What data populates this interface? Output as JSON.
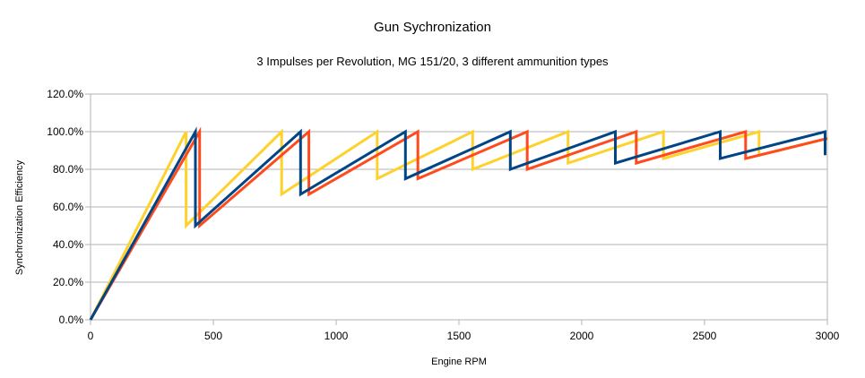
{
  "chart_data": {
    "type": "line",
    "title": "Gun Sychronization",
    "subtitle": "3 Impulses per Revolution, MG 151/20, 3 different ammunition types",
    "xlabel": "Engine RPM",
    "ylabel": "Synchronization Efficiency",
    "xlim": [
      0,
      3000
    ],
    "ylim": [
      0,
      120
    ],
    "x_ticks": [
      "0",
      "500",
      "1000",
      "1500",
      "2000",
      "2500",
      "3000"
    ],
    "y_ticks": [
      "0.0%",
      "20.0%",
      "40.0%",
      "60.0%",
      "80.0%",
      "100.0%",
      "120.0%"
    ],
    "grid": "horizontal",
    "legend": "none",
    "series": [
      {
        "color": "#FDD22C",
        "points": [
          [
            0,
            0
          ],
          [
            389,
            100
          ],
          [
            389,
            50
          ],
          [
            778,
            100
          ],
          [
            778,
            66.7
          ],
          [
            1167,
            100
          ],
          [
            1167,
            75
          ],
          [
            1556,
            100
          ],
          [
            1556,
            80
          ],
          [
            1944,
            100
          ],
          [
            1944,
            83.3
          ],
          [
            2333,
            100
          ],
          [
            2333,
            85.7
          ],
          [
            2722,
            100
          ],
          [
            2722,
            87.5
          ],
          [
            3000,
            96.4
          ]
        ]
      },
      {
        "color": "#FF4A1E",
        "points": [
          [
            0,
            0
          ],
          [
            444,
            100
          ],
          [
            444,
            50
          ],
          [
            889,
            100
          ],
          [
            889,
            66.7
          ],
          [
            1333,
            100
          ],
          [
            1333,
            75
          ],
          [
            1778,
            100
          ],
          [
            1778,
            80
          ],
          [
            2222,
            100
          ],
          [
            2222,
            83.3
          ],
          [
            2667,
            100
          ],
          [
            2667,
            85.7
          ],
          [
            3000,
            96.4
          ]
        ]
      },
      {
        "color": "#004586",
        "points": [
          [
            0,
            0
          ],
          [
            427,
            100
          ],
          [
            427,
            50
          ],
          [
            855,
            100
          ],
          [
            855,
            66.7
          ],
          [
            1282,
            100
          ],
          [
            1282,
            75
          ],
          [
            1709,
            100
          ],
          [
            1709,
            80
          ],
          [
            2137,
            100
          ],
          [
            2137,
            83.3
          ],
          [
            2564,
            100
          ],
          [
            2564,
            85.7
          ],
          [
            2991,
            100
          ],
          [
            2991,
            87.5
          ]
        ]
      }
    ]
  }
}
